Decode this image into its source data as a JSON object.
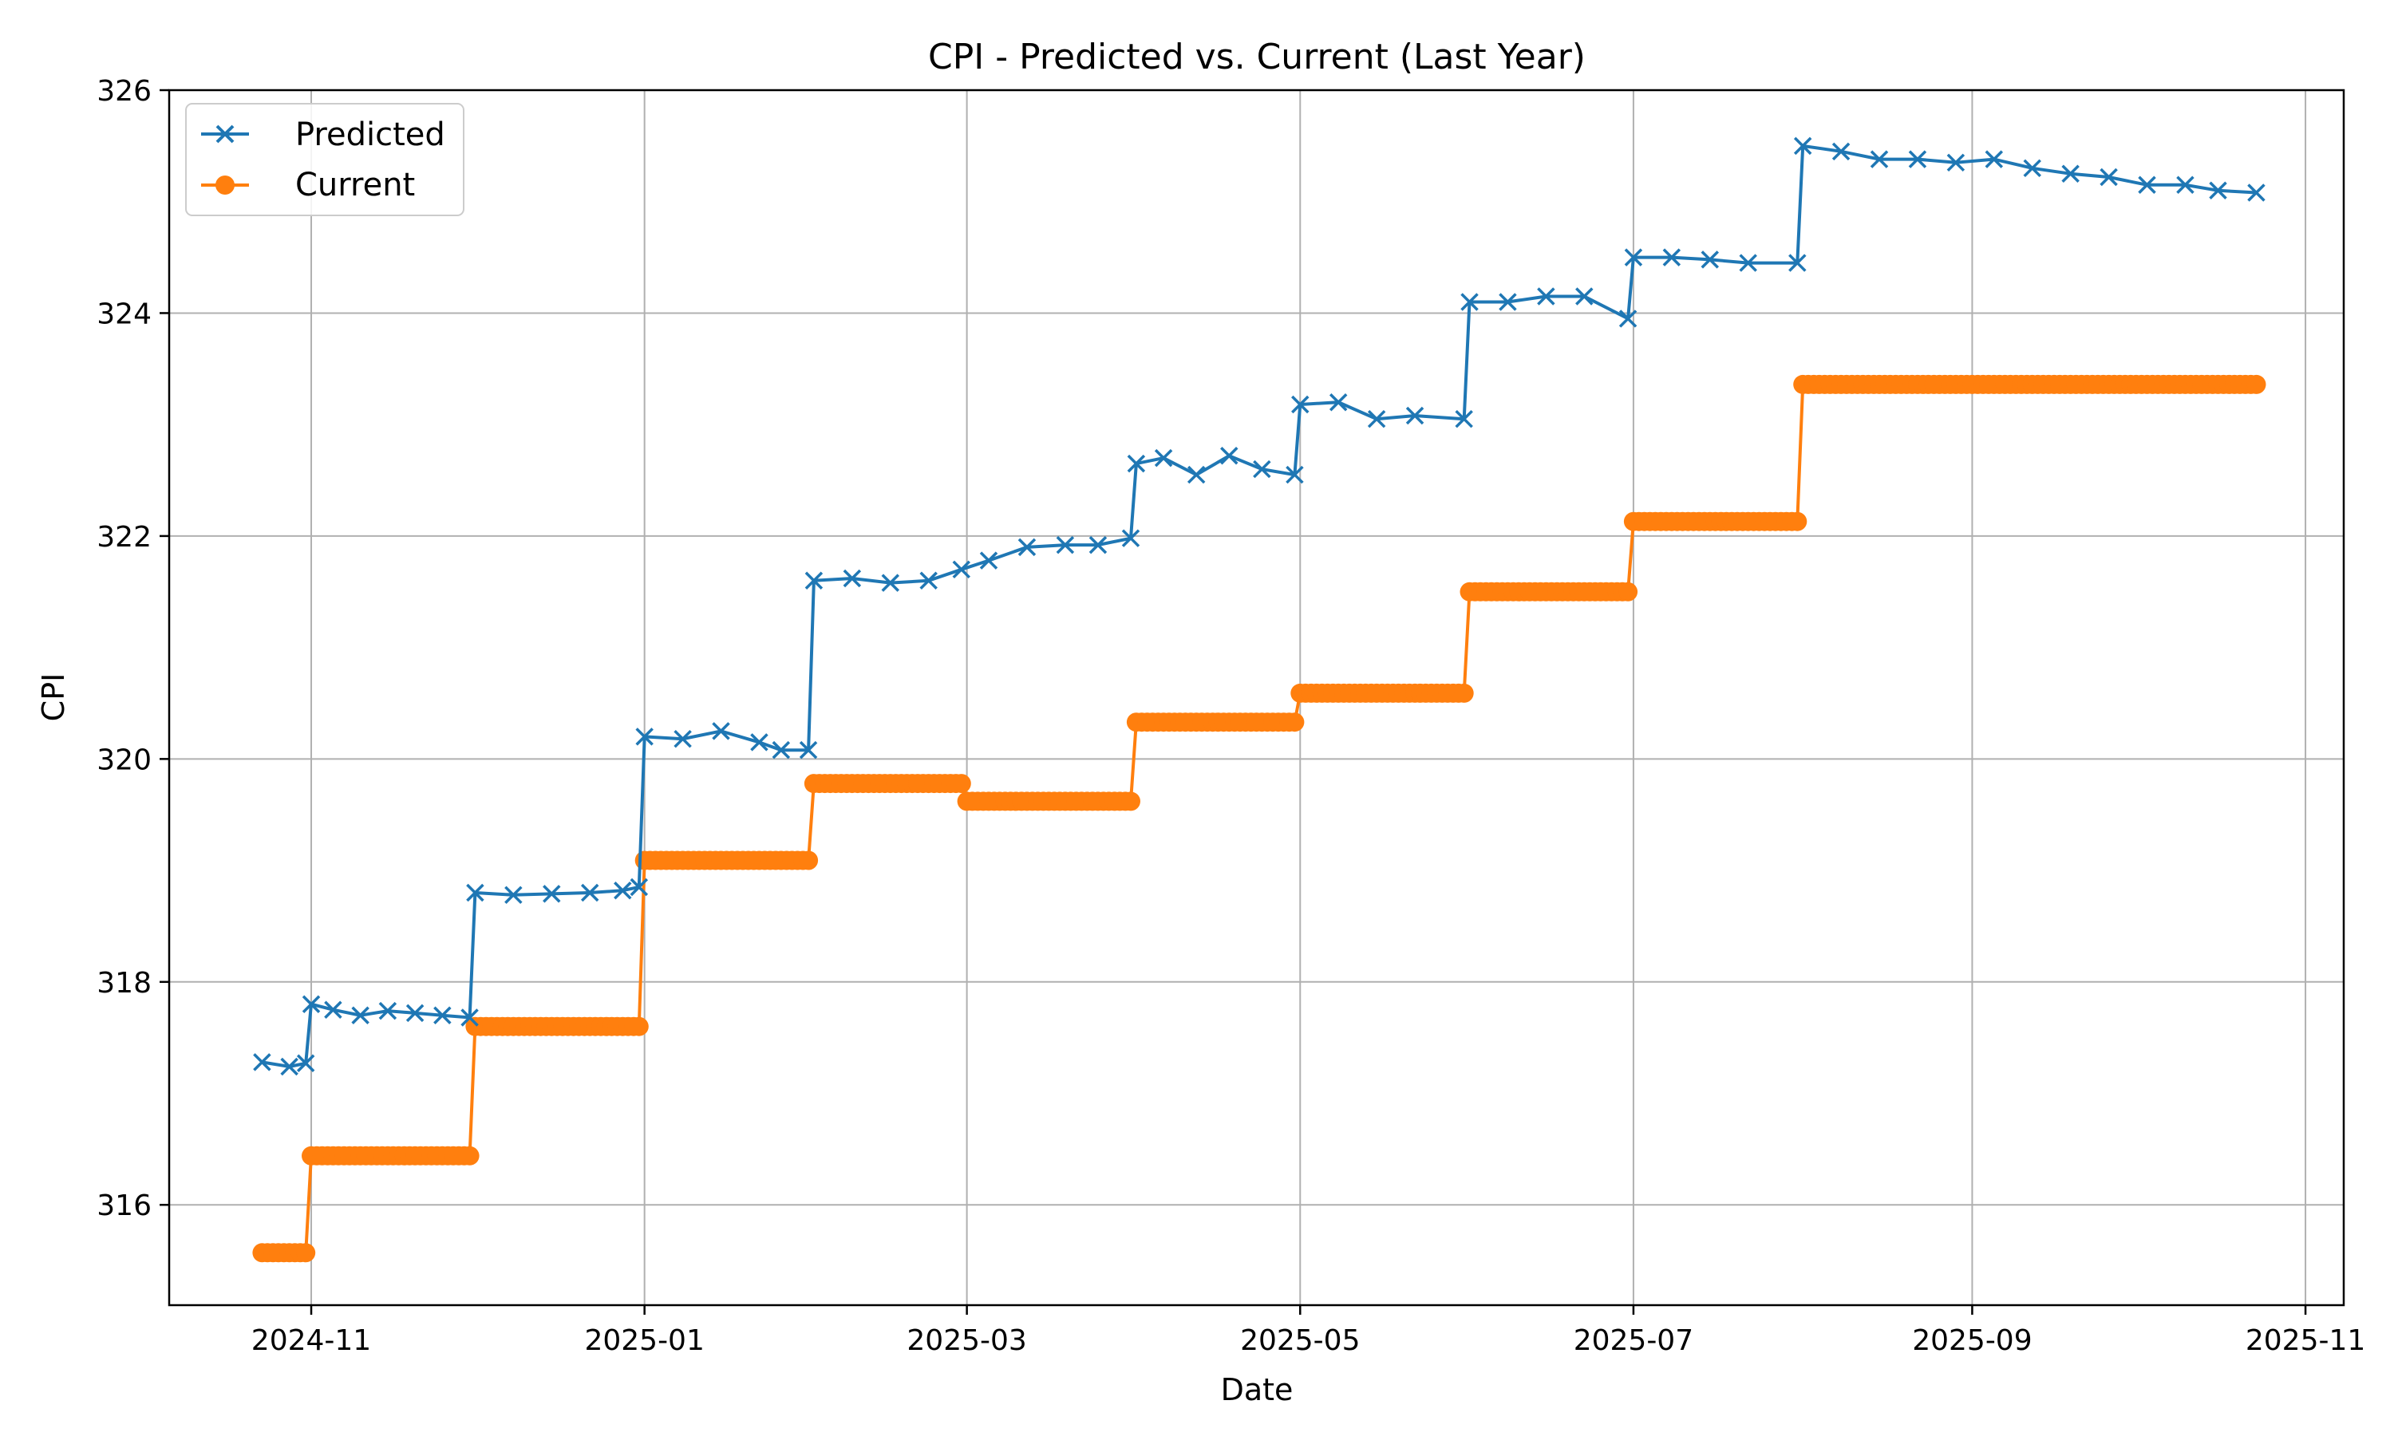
{
  "chart_data": {
    "type": "line",
    "title": "CPI - Predicted vs. Current (Last Year)",
    "xlabel": "Date",
    "ylabel": "CPI",
    "x_range": [
      "2024-10-06",
      "2025-11-08"
    ],
    "ylim": [
      315.1,
      326.0
    ],
    "x_ticks": [
      {
        "date": "2024-11-01",
        "label": "2024-11"
      },
      {
        "date": "2025-01-01",
        "label": "2025-01"
      },
      {
        "date": "2025-03-01",
        "label": "2025-03"
      },
      {
        "date": "2025-05-01",
        "label": "2025-05"
      },
      {
        "date": "2025-07-01",
        "label": "2025-07"
      },
      {
        "date": "2025-09-01",
        "label": "2025-09"
      },
      {
        "date": "2025-11-01",
        "label": "2025-11"
      }
    ],
    "y_ticks": [
      316,
      318,
      320,
      322,
      324,
      326
    ],
    "grid": true,
    "legend_position": "upper-left",
    "colors": {
      "predicted": "#1f77b4",
      "current": "#ff7f0e"
    },
    "series": [
      {
        "name": "Predicted",
        "marker": "x",
        "points": [
          [
            "2024-10-23",
            317.28
          ],
          [
            "2024-10-28",
            317.24
          ],
          [
            "2024-10-31",
            317.27
          ],
          [
            "2024-11-01",
            317.8
          ],
          [
            "2024-11-05",
            317.75
          ],
          [
            "2024-11-10",
            317.7
          ],
          [
            "2024-11-15",
            317.74
          ],
          [
            "2024-11-20",
            317.72
          ],
          [
            "2024-11-25",
            317.7
          ],
          [
            "2024-11-30",
            317.68
          ],
          [
            "2024-12-01",
            318.8
          ],
          [
            "2024-12-08",
            318.78
          ],
          [
            "2024-12-15",
            318.79
          ],
          [
            "2024-12-22",
            318.8
          ],
          [
            "2024-12-28",
            318.82
          ],
          [
            "2024-12-31",
            318.85
          ],
          [
            "2025-01-01",
            320.2
          ],
          [
            "2025-01-08",
            320.18
          ],
          [
            "2025-01-15",
            320.25
          ],
          [
            "2025-01-22",
            320.15
          ],
          [
            "2025-01-26",
            320.08
          ],
          [
            "2025-01-31",
            320.08
          ],
          [
            "2025-02-01",
            321.6
          ],
          [
            "2025-02-08",
            321.62
          ],
          [
            "2025-02-15",
            321.58
          ],
          [
            "2025-02-22",
            321.6
          ],
          [
            "2025-02-28",
            321.7
          ],
          [
            "2025-03-05",
            321.78
          ],
          [
            "2025-03-12",
            321.9
          ],
          [
            "2025-03-19",
            321.92
          ],
          [
            "2025-03-25",
            321.92
          ],
          [
            "2025-03-31",
            321.98
          ],
          [
            "2025-04-01",
            322.65
          ],
          [
            "2025-04-06",
            322.7
          ],
          [
            "2025-04-12",
            322.55
          ],
          [
            "2025-04-18",
            322.72
          ],
          [
            "2025-04-24",
            322.6
          ],
          [
            "2025-04-30",
            322.55
          ],
          [
            "2025-05-01",
            323.18
          ],
          [
            "2025-05-08",
            323.2
          ],
          [
            "2025-05-15",
            323.05
          ],
          [
            "2025-05-22",
            323.08
          ],
          [
            "2025-05-31",
            323.05
          ],
          [
            "2025-06-01",
            324.1
          ],
          [
            "2025-06-08",
            324.1
          ],
          [
            "2025-06-15",
            324.15
          ],
          [
            "2025-06-22",
            324.15
          ],
          [
            "2025-06-30",
            323.95
          ],
          [
            "2025-07-01",
            324.5
          ],
          [
            "2025-07-08",
            324.5
          ],
          [
            "2025-07-15",
            324.48
          ],
          [
            "2025-07-22",
            324.45
          ],
          [
            "2025-07-31",
            324.45
          ],
          [
            "2025-08-01",
            325.5
          ],
          [
            "2025-08-08",
            325.45
          ],
          [
            "2025-08-15",
            325.38
          ],
          [
            "2025-08-22",
            325.38
          ],
          [
            "2025-08-29",
            325.35
          ],
          [
            "2025-09-05",
            325.38
          ],
          [
            "2025-09-12",
            325.3
          ],
          [
            "2025-09-19",
            325.25
          ],
          [
            "2025-09-26",
            325.22
          ],
          [
            "2025-10-03",
            325.15
          ],
          [
            "2025-10-10",
            325.15
          ],
          [
            "2025-10-16",
            325.1
          ],
          [
            "2025-10-23",
            325.08
          ]
        ]
      },
      {
        "name": "Current",
        "marker": "o",
        "steps": [
          [
            "2024-10-23",
            "2024-10-31",
            315.57
          ],
          [
            "2024-11-01",
            "2024-11-30",
            316.44
          ],
          [
            "2024-12-01",
            "2024-12-31",
            317.6
          ],
          [
            "2025-01-01",
            "2025-01-31",
            319.09
          ],
          [
            "2025-02-01",
            "2025-02-28",
            319.78
          ],
          [
            "2025-03-01",
            "2025-03-31",
            319.62
          ],
          [
            "2025-04-01",
            "2025-04-30",
            320.33
          ],
          [
            "2025-05-01",
            "2025-05-31",
            320.59
          ],
          [
            "2025-06-01",
            "2025-06-30",
            321.5
          ],
          [
            "2025-07-01",
            "2025-07-31",
            322.13
          ],
          [
            "2025-08-01",
            "2025-10-23",
            323.36
          ]
        ]
      }
    ]
  }
}
